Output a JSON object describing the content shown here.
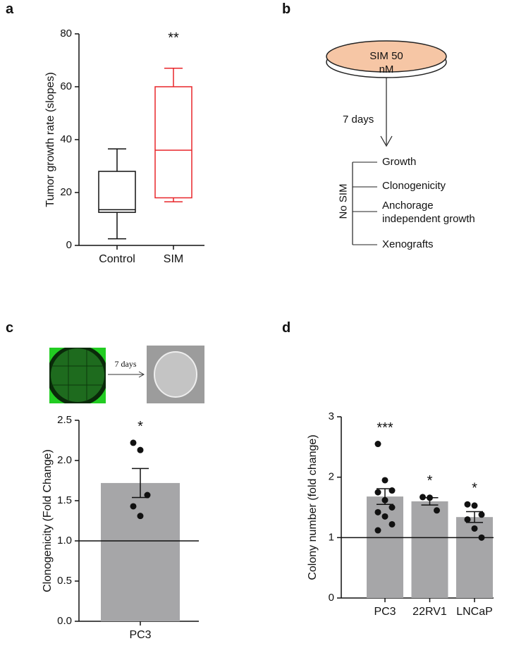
{
  "panels": [
    "a",
    "b",
    "c",
    "d"
  ],
  "diagram_b": {
    "dish_label": "SIM 50 nM",
    "arrow_label": "7 days",
    "group_label": "No SIM",
    "outcomes": [
      "Growth",
      "Clonogenicity",
      "Anchorage\nindependent growth",
      "Xenografts"
    ]
  },
  "figure_c_inset": {
    "label": "7 days"
  },
  "chart_data": [
    {
      "type": "box",
      "y_label": "Tumor growth rate (slopes)",
      "categories": [
        "Control",
        "SIM"
      ],
      "boxes": [
        {
          "min": 2.5,
          "q1": 12.5,
          "median": 13.5,
          "q3": 28,
          "max": 36.5,
          "color": "#111111"
        },
        {
          "min": 16.5,
          "q1": 18,
          "median": 36,
          "q3": 60,
          "max": 67,
          "color": "#e8262a"
        }
      ],
      "annotations": [
        null,
        "**"
      ],
      "ylim": [
        0,
        80
      ],
      "yticks": [
        0,
        20,
        40,
        60,
        80
      ]
    },
    {
      "type": "bar",
      "y_label": "Clonogenicity (Fold Change)",
      "categories": [
        "PC3"
      ],
      "values": [
        1.72
      ],
      "errors": [
        0.18
      ],
      "points": [
        [
          2.22,
          2.13,
          1.57,
          1.43,
          1.31
        ]
      ],
      "annotations": [
        "*"
      ],
      "color": "#a6a6a8",
      "reference_line": 1,
      "ylim": [
        0,
        2.5
      ],
      "yticks": [
        {
          "value": 0,
          "label": "0.0"
        },
        0.5,
        {
          "value": 1,
          "label": "1.0"
        },
        1.5,
        {
          "value": 2,
          "label": "2.0"
        },
        2.5
      ]
    },
    {
      "type": "bar",
      "y_label": "Colony number (fold change)",
      "categories": [
        "PC3",
        "22RV1",
        "LNCaP"
      ],
      "values": [
        1.68,
        1.6,
        1.34
      ],
      "errors": [
        0.13,
        0.06,
        0.09
      ],
      "points": [
        [
          2.55,
          1.95,
          1.78,
          1.75,
          1.62,
          1.5,
          1.42,
          1.35,
          1.22,
          1.12
        ],
        [
          1.67,
          1.66,
          1.45
        ],
        [
          1.55,
          1.53,
          1.38,
          1.3,
          1.15,
          1.0
        ]
      ],
      "annotations": [
        "***",
        "*",
        "*"
      ],
      "color": "#a6a6a8",
      "reference_line": 1,
      "ylim": [
        0,
        3
      ],
      "yticks": [
        0,
        1,
        2,
        3
      ]
    }
  ]
}
